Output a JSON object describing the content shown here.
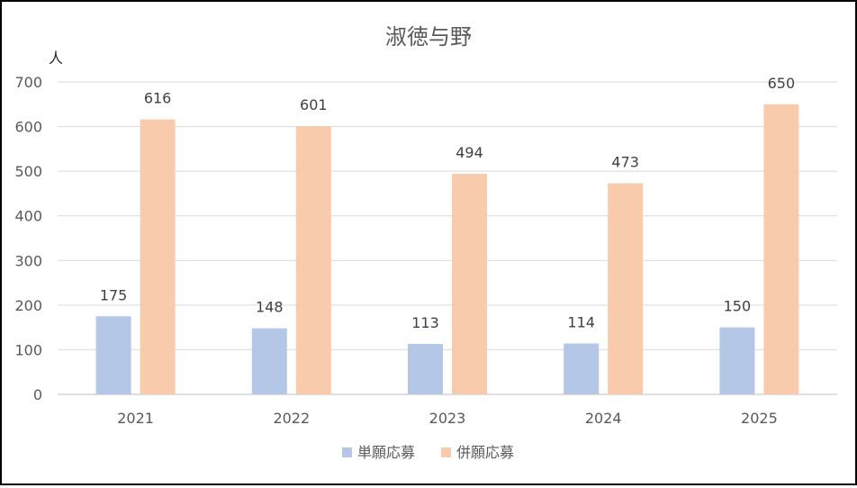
{
  "chart_data": {
    "type": "bar",
    "title": "淑徳与野",
    "ylabel": "人",
    "xlabel": "",
    "categories": [
      "2021",
      "2022",
      "2023",
      "2024",
      "2025"
    ],
    "series": [
      {
        "name": "単願応募",
        "values": [
          175,
          148,
          113,
          114,
          150
        ],
        "color": "#b4c7e7"
      },
      {
        "name": "併願応募",
        "values": [
          616,
          601,
          494,
          473,
          650
        ],
        "color": "#f8cbad"
      }
    ],
    "ylim": [
      0,
      700
    ],
    "yticks": [
      "0",
      "100",
      "200",
      "300",
      "400",
      "500",
      "600",
      "700"
    ],
    "grid": true,
    "legend": "bottom",
    "data_labels": true
  }
}
